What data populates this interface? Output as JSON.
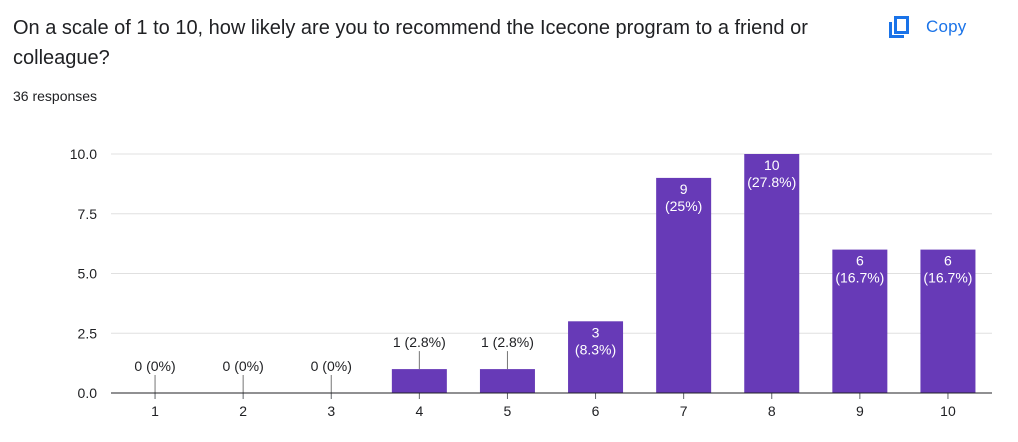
{
  "question": "On a scale of 1 to 10, how likely are you to recommend the Icecone program to a friend or colleague?",
  "responses": "36 responses",
  "copy": {
    "label": "Copy",
    "icon": "copy-icon"
  },
  "colors": {
    "bar": "#673ab7",
    "accent": "#1a73e8",
    "grid": "#e0e0e0",
    "axis": "#202124"
  },
  "chart_data": {
    "type": "bar",
    "categories": [
      "1",
      "2",
      "3",
      "4",
      "5",
      "6",
      "7",
      "8",
      "9",
      "10"
    ],
    "values": [
      0,
      0,
      0,
      1,
      1,
      3,
      9,
      10,
      6,
      6
    ],
    "data_labels": [
      "0 (0%)",
      "0 (0%)",
      "0 (0%)",
      "1 (2.8%)",
      "1 (2.8%)",
      "3 (8.3%)",
      "9 (25%)",
      "10 (27.8%)",
      "6 (16.7%)",
      "6 (16.7%)"
    ],
    "ylim": [
      0,
      10
    ],
    "yticks": [
      "0.0",
      "2.5",
      "5.0",
      "7.5",
      "10.0"
    ],
    "ytick_values": [
      0,
      2.5,
      5,
      7.5,
      10
    ],
    "grid": true,
    "legend": false
  }
}
